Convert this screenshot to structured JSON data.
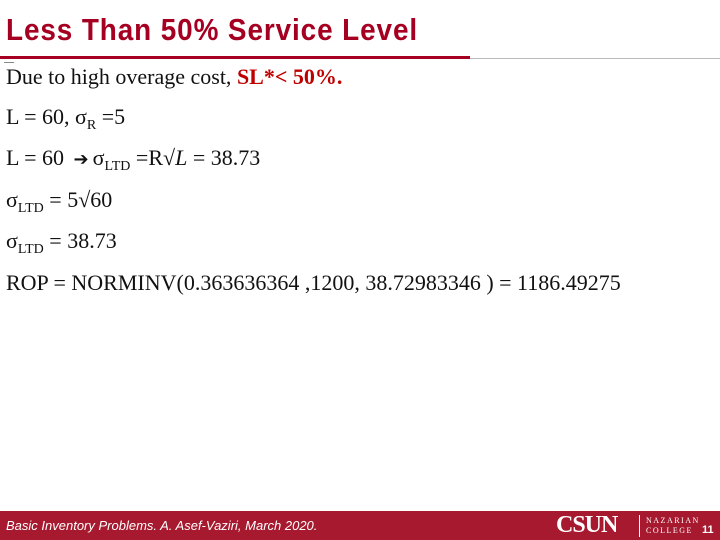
{
  "title": "Less Than 50% Service Level",
  "lines": [
    [
      "Due to high overage cost, ",
      "SL*< 50%."
    ],
    [
      "L = 60, σ",
      "R",
      " =5"
    ],
    [
      "L = 60 ",
      "σ",
      "LTD",
      " =R√",
      "L",
      " = 38.73"
    ],
    [
      "σ",
      "LTD",
      " = 5√60"
    ],
    [
      "σ",
      "LTD",
      " = 38.73"
    ],
    [
      "ROP = NORMINV(0.363636364 ,1200, 38.72983346 ) = 1186.49275"
    ]
  ],
  "footer": {
    "citation": "Basic Inventory Problems. A. Asef-Vaziri, March 2020.",
    "logo": "CSUN",
    "college": [
      "NAZARIAN",
      "COLLEGE"
    ],
    "page": "11"
  }
}
